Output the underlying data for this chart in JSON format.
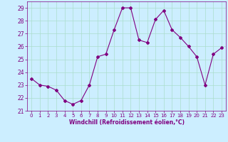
{
  "x": [
    0,
    1,
    2,
    3,
    4,
    5,
    6,
    7,
    8,
    9,
    10,
    11,
    12,
    13,
    14,
    15,
    16,
    17,
    18,
    19,
    20,
    21,
    22,
    23
  ],
  "y": [
    23.5,
    23.0,
    22.9,
    22.6,
    21.8,
    21.5,
    21.8,
    23.0,
    25.2,
    25.4,
    27.3,
    29.0,
    29.0,
    26.5,
    26.3,
    28.1,
    28.8,
    27.3,
    26.7,
    26.0,
    25.2,
    23.0,
    25.4,
    25.9
  ],
  "line_color": "#800080",
  "marker": "D",
  "marker_size": 2,
  "bg_color": "#cceeff",
  "grid_color": "#aaddcc",
  "xlabel": "Windchill (Refroidissement éolien,°C)",
  "xlabel_color": "#800080",
  "tick_color": "#800080",
  "ylim": [
    21,
    29.5
  ],
  "xlim": [
    -0.5,
    23.5
  ],
  "yticks": [
    21,
    22,
    23,
    24,
    25,
    26,
    27,
    28,
    29
  ],
  "xticks": [
    0,
    1,
    2,
    3,
    4,
    5,
    6,
    7,
    8,
    9,
    10,
    11,
    12,
    13,
    14,
    15,
    16,
    17,
    18,
    19,
    20,
    21,
    22,
    23
  ]
}
